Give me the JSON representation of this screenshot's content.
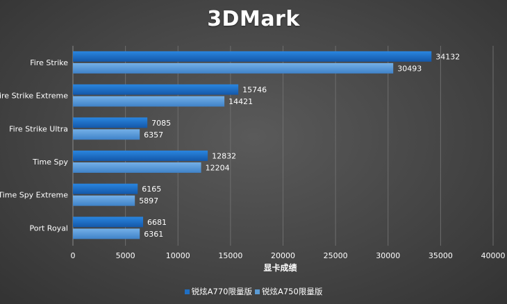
{
  "chart_data": {
    "type": "bar",
    "orientation": "horizontal",
    "title": "3DMark",
    "xlabel": "显卡成绩",
    "ylabel": "",
    "xlim": [
      0,
      40000
    ],
    "xticks": [
      "0",
      "5000",
      "10000",
      "15000",
      "20000",
      "25000",
      "30000",
      "35000",
      "40000"
    ],
    "grid": true,
    "legend_position": "bottom",
    "categories": [
      "Fire Strike",
      "Fire Strike Extreme",
      "Fire Strike Ultra",
      "Time Spy",
      "Time Spy Extreme",
      "Port Royal"
    ],
    "series": [
      {
        "name": "锐炫A770限量版",
        "color": "#1f6fc4",
        "values": [
          34132,
          15746,
          7085,
          12832,
          6165,
          6681
        ]
      },
      {
        "name": "锐炫A750限量版",
        "color": "#5b9bd5",
        "values": [
          30493,
          14421,
          6357,
          12204,
          5897,
          6361
        ]
      }
    ]
  }
}
